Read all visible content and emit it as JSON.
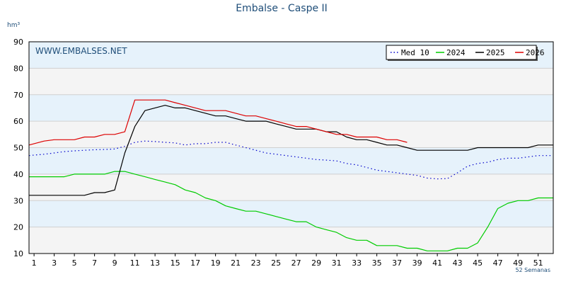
{
  "page": {
    "title": "Embalse - Caspe II",
    "watermark": "WWW.EMBALSES.NET"
  },
  "chart_data": {
    "type": "line",
    "title": "Embalse - Caspe II",
    "ylabel": "hm³",
    "xlabel": "52 Semanas",
    "ylim": [
      10,
      90
    ],
    "xlim": [
      0.5,
      52.5
    ],
    "yticks": [
      10,
      20,
      30,
      40,
      50,
      60,
      70,
      80,
      90
    ],
    "xticks": [
      1,
      3,
      5,
      7,
      9,
      11,
      13,
      15,
      17,
      19,
      21,
      23,
      25,
      27,
      29,
      31,
      33,
      35,
      37,
      39,
      41,
      43,
      45,
      47,
      49,
      51
    ],
    "grid": true,
    "legend_position": "top-right",
    "series": [
      {
        "name": "Med 10",
        "color": "#0000cc",
        "style": "dotted",
        "x": [
          0.5,
          1,
          2,
          3,
          4,
          5,
          6,
          7,
          8,
          9,
          10,
          11,
          12,
          13,
          14,
          15,
          16,
          17,
          18,
          19,
          20,
          21,
          22,
          23,
          24,
          25,
          26,
          27,
          28,
          29,
          30,
          31,
          32,
          33,
          34,
          35,
          36,
          37,
          38,
          39,
          40,
          41,
          42,
          43,
          44,
          45,
          46,
          47,
          48,
          49,
          50,
          51,
          52.5
        ],
        "values": [
          47,
          47.2,
          47.5,
          48,
          48.5,
          48.8,
          49,
          49.2,
          49.3,
          49.5,
          50.5,
          52,
          52.5,
          52.3,
          52,
          51.8,
          51,
          51.5,
          51.5,
          52,
          52,
          51,
          50,
          49,
          48,
          47.5,
          47,
          46.5,
          46,
          45.5,
          45.3,
          45,
          44,
          43.5,
          42.5,
          41.5,
          41,
          40.5,
          40,
          39.5,
          38.5,
          38.2,
          38.3,
          40.5,
          43,
          44,
          44.5,
          45.5,
          46,
          46,
          46.5,
          47,
          47
        ]
      },
      {
        "name": "2024",
        "color": "#00cc00",
        "style": "solid",
        "x": [
          0.5,
          1,
          2,
          3,
          4,
          5,
          6,
          7,
          8,
          9,
          10,
          11,
          12,
          13,
          14,
          15,
          16,
          17,
          18,
          19,
          20,
          21,
          22,
          23,
          24,
          25,
          26,
          27,
          28,
          29,
          30,
          31,
          32,
          33,
          34,
          35,
          36,
          37,
          38,
          39,
          40,
          41,
          42,
          43,
          44,
          45,
          46,
          47,
          48,
          49,
          50,
          51,
          52.5
        ],
        "values": [
          39,
          39,
          39,
          39,
          39,
          40,
          40,
          40,
          40,
          41,
          41,
          40,
          39,
          38,
          37,
          36,
          34,
          33,
          31,
          30,
          28,
          27,
          26,
          26,
          25,
          24,
          23,
          22,
          22,
          20,
          19,
          18,
          16,
          15,
          15,
          13,
          13,
          13,
          12,
          12,
          11,
          11,
          11,
          12,
          12,
          14,
          20,
          27,
          29,
          30,
          30,
          31,
          31
        ]
      },
      {
        "name": "2025",
        "color": "#000000",
        "style": "solid",
        "x": [
          0.5,
          1,
          2,
          3,
          4,
          5,
          6,
          7,
          8,
          9,
          10,
          11,
          12,
          13,
          14,
          15,
          16,
          17,
          18,
          19,
          20,
          21,
          22,
          23,
          24,
          25,
          26,
          27,
          28,
          29,
          30,
          31,
          32,
          33,
          34,
          35,
          36,
          37,
          38,
          39,
          40,
          41,
          42,
          43,
          44,
          45,
          46,
          47,
          48,
          49,
          50,
          51,
          52.5
        ],
        "values": [
          32,
          32,
          32,
          32,
          32,
          32,
          32,
          33,
          33,
          34,
          48,
          58,
          64,
          65,
          66,
          65,
          65,
          64,
          63,
          62,
          62,
          61,
          60,
          60,
          60,
          59,
          58,
          57,
          57,
          57,
          56,
          56,
          54,
          53,
          53,
          52,
          51,
          51,
          50,
          49,
          49,
          49,
          49,
          49,
          49,
          50,
          50,
          50,
          50,
          50,
          50,
          51,
          51
        ]
      },
      {
        "name": "2026",
        "color": "#dd0000",
        "style": "solid",
        "x": [
          0.5,
          1,
          2,
          3,
          4,
          5,
          6,
          7,
          8,
          9,
          10,
          11,
          12,
          13,
          14,
          15,
          16,
          17,
          18,
          19,
          20,
          21,
          22,
          23,
          24,
          25,
          26,
          27,
          28,
          29,
          30,
          31,
          32,
          33,
          34,
          35,
          36,
          37,
          38
        ],
        "values": [
          51,
          51.5,
          52.5,
          53,
          53,
          53,
          54,
          54,
          55,
          55,
          56,
          68,
          68,
          68,
          68,
          67,
          66,
          65,
          64,
          64,
          64,
          63,
          62,
          62,
          61,
          60,
          59,
          58,
          58,
          57,
          56,
          55,
          55,
          54,
          54,
          54,
          53,
          53,
          52
        ]
      }
    ]
  }
}
